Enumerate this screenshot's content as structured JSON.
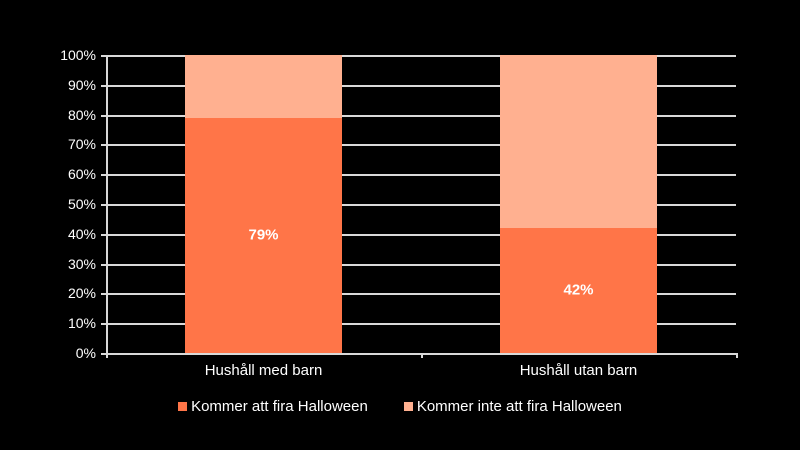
{
  "chart_data": {
    "type": "bar",
    "stacked": true,
    "percent": true,
    "title": "",
    "xlabel": "",
    "ylabel": "",
    "ylim": [
      0,
      100
    ],
    "yticks": [
      "0%",
      "10%",
      "20%",
      "30%",
      "40%",
      "50%",
      "60%",
      "70%",
      "80%",
      "90%",
      "100%"
    ],
    "grid": true,
    "legend_position": "bottom",
    "categories": [
      "Hushåll med barn",
      "Hushåll utan barn"
    ],
    "series": [
      {
        "name": "Kommer att fira Halloween",
        "values": [
          79,
          42
        ],
        "color": "#ff7548",
        "labels": [
          "79%",
          "42%"
        ]
      },
      {
        "name": "Kommer inte att fira Halloween",
        "values": [
          21,
          58
        ],
        "color": "#ffb090"
      }
    ]
  }
}
